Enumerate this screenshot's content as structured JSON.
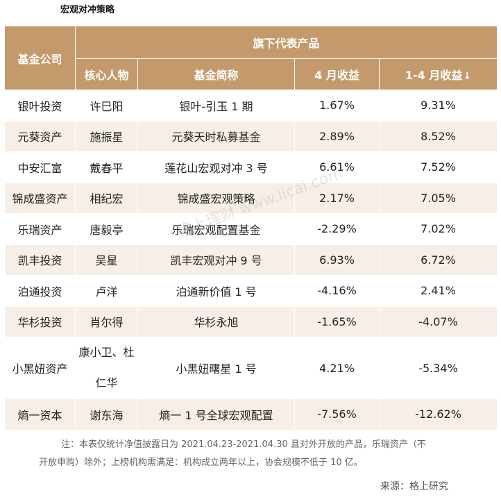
{
  "title": "宏观对冲策略",
  "header": {
    "company": "基金公司",
    "group": "旗下代表产品",
    "person": "核心人物",
    "fund_name": "基金简称",
    "april": "4 月收益",
    "ytd": "1-4 月收益",
    "ytd_sort_icon": "↓"
  },
  "rows": [
    {
      "company": "银叶投资",
      "person": "许巳阳",
      "fund": "银叶-引玉 1 期",
      "april": "1.67%",
      "ytd": "9.31%"
    },
    {
      "company": "元葵资产",
      "person": "施振星",
      "fund": "元葵天时私募基金",
      "april": "2.89%",
      "ytd": "8.52%"
    },
    {
      "company": "中安汇富",
      "person": "戴春平",
      "fund": "莲花山宏观对冲 3 号",
      "april": "6.61%",
      "ytd": "7.52%"
    },
    {
      "company": "锦成盛资产",
      "person": "相纪宏",
      "fund": "锦成盛宏观策略",
      "april": "2.17%",
      "ytd": "7.05%"
    },
    {
      "company": "乐瑞资产",
      "person": "唐毅亭",
      "fund": "乐瑞宏观配置基金",
      "april": "-2.29%",
      "ytd": "7.02%"
    },
    {
      "company": "凯丰投资",
      "person": "吴星",
      "fund": "凯丰宏观对冲 9 号",
      "april": "6.93%",
      "ytd": "6.72%"
    },
    {
      "company": "泊通投资",
      "person": "卢洋",
      "fund": "泊通新价值 1 号",
      "april": "-4.16%",
      "ytd": "2.41%"
    },
    {
      "company": "华杉投资",
      "person": "肖尔得",
      "fund": "华杉永旭",
      "april": "-1.65%",
      "ytd": "-4.07%"
    },
    {
      "company": "小黑妞资产",
      "person": "康小卫、杜仁华",
      "fund": "小黑妞曙星 1 号",
      "april": "4.21%",
      "ytd": "-5.34%"
    },
    {
      "company": "熵一资本",
      "person": "谢东海",
      "fund": "熵一 1 号全球宏观配置",
      "april": "-7.56%",
      "ytd": "-12.62%"
    }
  ],
  "footnote": {
    "line1": "注：本表仅统计净值披露日为 2021.04.23-2021.04.30 且对外开放的产品，乐瑞资产（不",
    "line2": "开放申购）除外；上榜机构需满足：机构成立两年以上，协会规模不低于 10 亿。"
  },
  "source": "来源：格上研究",
  "watermark": "格上理财 www.licai.com"
}
